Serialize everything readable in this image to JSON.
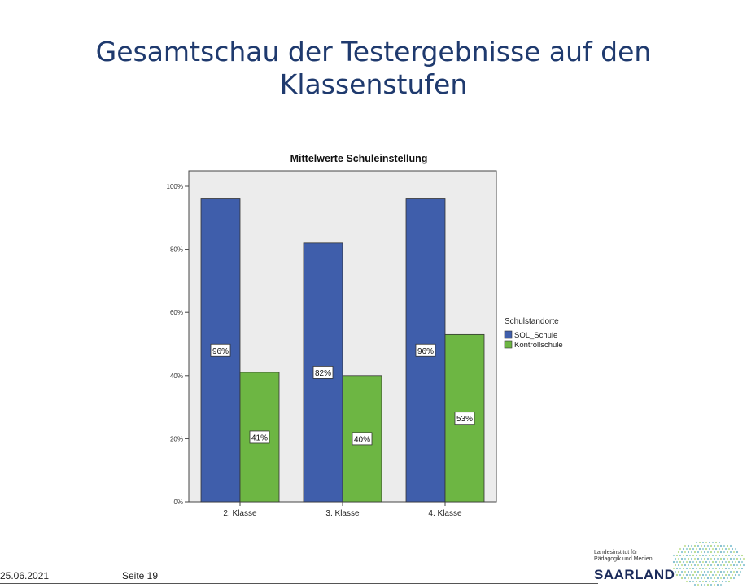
{
  "slide": {
    "title_line1": "Gesamtschau  der Testergebnisse auf den",
    "title_line2": "Klassenstufen"
  },
  "footer": {
    "date": "25.06.2021",
    "page": "Seite 19"
  },
  "logo": {
    "small_text": "Landesinstitut für\nPädagogik und Medien",
    "big_text": "SAARLAND"
  },
  "chart_data": {
    "type": "bar",
    "title": "Mittelwerte Schuleinstellung",
    "xlabel": "",
    "ylabel": "",
    "categories": [
      "2. Klasse",
      "3. Klasse",
      "4. Klasse"
    ],
    "series": [
      {
        "name": "SOL_Schule",
        "values": [
          96,
          82,
          96
        ],
        "labels": [
          "96%",
          "82%",
          "96%"
        ],
        "color": "#3f5eab"
      },
      {
        "name": "Kontrollschule",
        "values": [
          41,
          40,
          53
        ],
        "labels": [
          "41%",
          "40%",
          "53%"
        ],
        "color": "#6db643"
      }
    ],
    "ylim": [
      0,
      100
    ],
    "yticks": [
      0,
      20,
      40,
      60,
      80,
      100
    ],
    "ytick_labels": [
      "0%",
      "20%",
      "40%",
      "60%",
      "80%",
      "100%"
    ],
    "legend_title": "Schulstandorte",
    "legend_position": "right",
    "plot_background": "#ececec",
    "grid": false
  }
}
